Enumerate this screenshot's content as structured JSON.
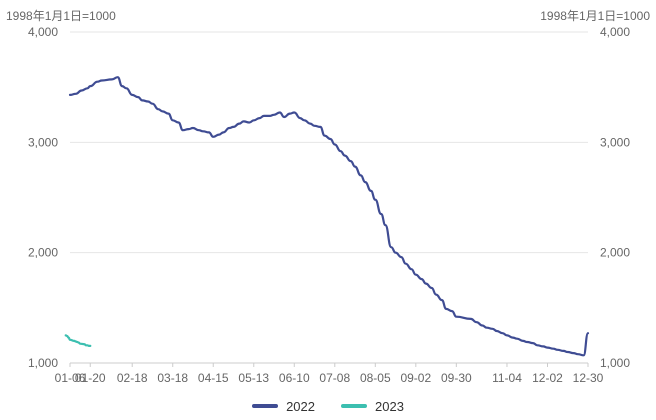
{
  "chart_data": {
    "type": "line",
    "unit_left": "1998年1月1日=1000",
    "unit_right": "1998年1月1日=1000",
    "x_ticks": [
      "01-06",
      "01-20",
      "02-18",
      "03-18",
      "04-15",
      "05-13",
      "06-10",
      "07-08",
      "08-05",
      "09-02",
      "09-30",
      "11-04",
      "12-02",
      "12-30"
    ],
    "ylim": [
      1000,
      4000
    ],
    "y_ticks": [
      "1,000",
      "2,000",
      "3,000",
      "4,000"
    ],
    "y_tick_values": [
      1000,
      2000,
      3000,
      4000
    ],
    "grid": true,
    "legend_position": "bottom",
    "series": [
      {
        "name": "2022",
        "color": "#3f4c93",
        "x": [
          "01-06",
          "01-10",
          "01-14",
          "01-18",
          "01-20",
          "01-25",
          "01-28",
          "02-04",
          "02-08",
          "02-11",
          "02-14",
          "02-18",
          "02-22",
          "02-25",
          "03-01",
          "03-04",
          "03-08",
          "03-11",
          "03-15",
          "03-18",
          "03-22",
          "03-25",
          "03-29",
          "04-01",
          "04-05",
          "04-08",
          "04-12",
          "04-15",
          "04-19",
          "04-22",
          "04-26",
          "04-29",
          "05-03",
          "05-06",
          "05-10",
          "05-13",
          "05-17",
          "05-20",
          "05-24",
          "05-27",
          "05-31",
          "06-03",
          "06-07",
          "06-10",
          "06-14",
          "06-17",
          "06-21",
          "06-24",
          "06-28",
          "07-01",
          "07-05",
          "07-08",
          "07-12",
          "07-15",
          "07-19",
          "07-22",
          "07-26",
          "07-29",
          "08-02",
          "08-05",
          "08-09",
          "08-12",
          "08-16",
          "08-19",
          "08-23",
          "08-26",
          "08-30",
          "09-02",
          "09-06",
          "09-09",
          "09-13",
          "09-16",
          "09-20",
          "09-23",
          "09-27",
          "09-30",
          "10-10",
          "10-14",
          "10-18",
          "10-21",
          "10-25",
          "10-28",
          "11-01",
          "11-04",
          "11-08",
          "11-11",
          "11-15",
          "11-18",
          "11-22",
          "11-25",
          "11-29",
          "12-02",
          "12-06",
          "12-09",
          "12-13",
          "12-16",
          "12-20",
          "12-23",
          "12-27",
          "12-30"
        ],
        "values": [
          3430,
          3440,
          3470,
          3490,
          3510,
          3550,
          3560,
          3570,
          3590,
          3510,
          3490,
          3430,
          3410,
          3380,
          3370,
          3350,
          3300,
          3280,
          3260,
          3200,
          3180,
          3110,
          3120,
          3130,
          3110,
          3100,
          3090,
          3050,
          3070,
          3090,
          3130,
          3140,
          3170,
          3190,
          3180,
          3200,
          3220,
          3240,
          3240,
          3250,
          3270,
          3230,
          3260,
          3270,
          3220,
          3200,
          3170,
          3150,
          3140,
          3060,
          3030,
          2980,
          2920,
          2880,
          2830,
          2780,
          2700,
          2640,
          2560,
          2480,
          2350,
          2250,
          2050,
          2000,
          1960,
          1900,
          1850,
          1800,
          1760,
          1720,
          1680,
          1620,
          1570,
          1490,
          1470,
          1420,
          1400,
          1370,
          1340,
          1320,
          1310,
          1290,
          1270,
          1250,
          1230,
          1220,
          1200,
          1190,
          1180,
          1160,
          1150,
          1140,
          1130,
          1120,
          1110,
          1100,
          1090,
          1080,
          1070,
          1270
        ]
      },
      {
        "name": "2023",
        "color": "#3cbfb0",
        "x": [
          "01-03",
          "01-04",
          "01-05",
          "01-06",
          "01-09",
          "01-10",
          "01-11",
          "01-12",
          "01-13",
          "01-16",
          "01-17",
          "01-18",
          "01-19",
          "01-20"
        ],
        "values": [
          1250,
          1245,
          1230,
          1210,
          1200,
          1195,
          1190,
          1185,
          1175,
          1170,
          1160,
          1160,
          1155,
          1155
        ]
      }
    ]
  }
}
